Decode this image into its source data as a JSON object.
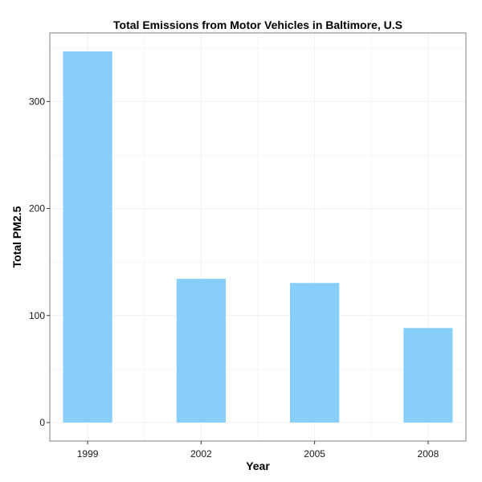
{
  "chart_data": {
    "type": "bar",
    "title": "Total Emissions from Motor Vehicles in Baltimore, U.S",
    "xlabel": "Year",
    "ylabel": "Total PM2.5",
    "categories": [
      "1999",
      "2002",
      "2005",
      "2008"
    ],
    "values": [
      346.8,
      134.3,
      130.4,
      88.3
    ],
    "x_values": [
      1999,
      2002,
      2005,
      2008
    ],
    "xlim": [
      1998,
      2009
    ],
    "ylim": [
      -17.3,
      364.1
    ],
    "yticks": [
      0,
      100,
      200,
      300
    ],
    "ytick_labels": [
      "0",
      "100",
      "200",
      "300"
    ],
    "xtick_labels": [
      "1999",
      "2002",
      "2005",
      "2008"
    ],
    "grid": true,
    "legend": "none",
    "colors": {
      "bar": "#87CEFA",
      "grid": "#f0f0f0",
      "panel_border": "#7f7f7f",
      "text": "#1a1a1a"
    }
  }
}
